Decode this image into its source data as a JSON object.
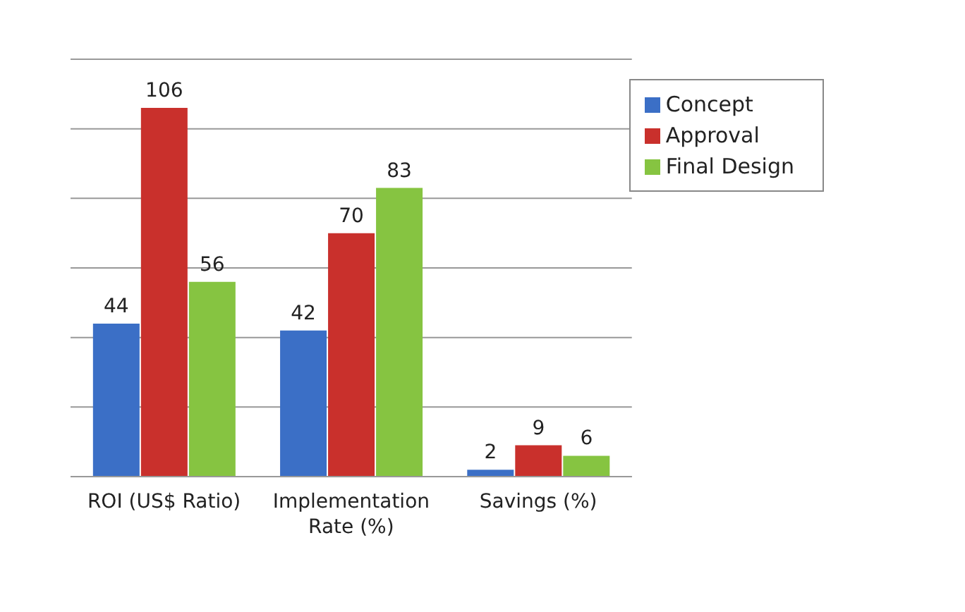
{
  "chart_data": {
    "type": "bar",
    "categories": [
      "ROI (US$ Ratio)",
      "Implementation Rate (%)",
      "Savings (%)"
    ],
    "series": [
      {
        "name": "Concept",
        "color": "#3b6fc6",
        "values": [
          44,
          42,
          2
        ]
      },
      {
        "name": "Approval",
        "color": "#c9302c",
        "values": [
          106,
          70,
          9
        ]
      },
      {
        "name": "Final Design",
        "color": "#86c441",
        "values": [
          56,
          83,
          6
        ]
      }
    ],
    "grid": "y",
    "tick_labels": "x",
    "data_labels": true,
    "legend": "top right"
  }
}
